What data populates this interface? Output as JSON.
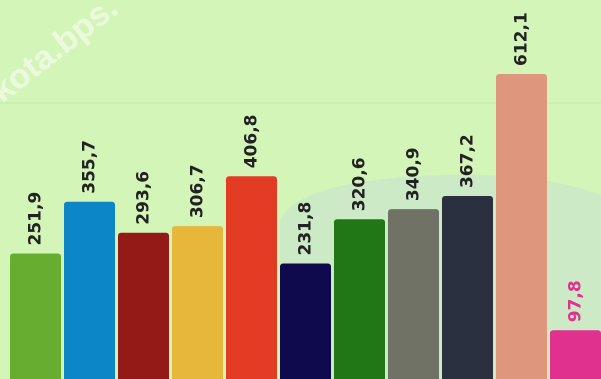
{
  "watermark": "kota.bps.",
  "chart_data": {
    "type": "bar",
    "values": [
      251.9,
      355.7,
      293.6,
      306.7,
      406.8,
      231.8,
      320.6,
      340.9,
      367.2,
      612.1,
      97.8
    ],
    "value_labels": [
      "251,9",
      "355,7",
      "293,6",
      "306,7",
      "406,8",
      "231,8",
      "320,6",
      "340,9",
      "367,2",
      "612,1",
      "97,8"
    ],
    "colors": [
      "#67ae30",
      "#0d86c8",
      "#931a16",
      "#e6b73b",
      "#e23c25",
      "#0f0a4d",
      "#217615",
      "#717266",
      "#2a3040",
      "#de977c",
      "#e0318f"
    ],
    "label_colors": [
      "#222222",
      "#222222",
      "#222222",
      "#222222",
      "#222222",
      "#222222",
      "#222222",
      "#222222",
      "#222222",
      "#222222",
      "#e0318f"
    ],
    "grid": true,
    "legend": "none"
  }
}
